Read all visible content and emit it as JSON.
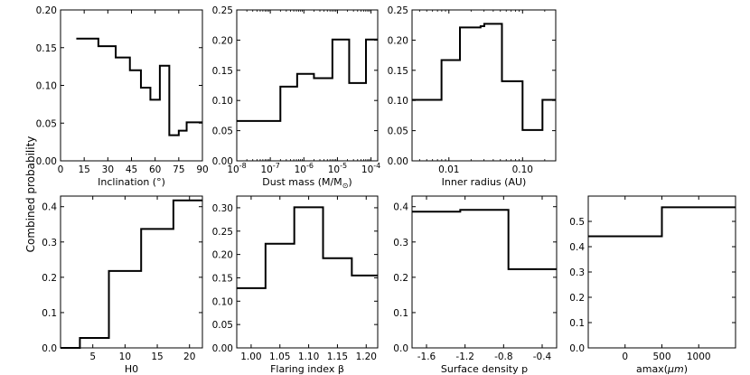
{
  "figure": {
    "ylabel": "Combined probability"
  },
  "chart_data": [
    {
      "type": "histogram",
      "xlabel": "Inclination (°)",
      "xscale": "linear",
      "xlim": [
        0,
        90
      ],
      "ylim": [
        0,
        0.2
      ],
      "xticks": [
        {
          "v": 0,
          "l": "0"
        },
        {
          "v": 15,
          "l": "15"
        },
        {
          "v": 30,
          "l": "30"
        },
        {
          "v": 45,
          "l": "45"
        },
        {
          "v": 60,
          "l": "60"
        },
        {
          "v": 75,
          "l": "75"
        },
        {
          "v": 90,
          "l": "90"
        }
      ],
      "yticks": [
        {
          "v": 0,
          "l": "0.00"
        },
        {
          "v": 0.05,
          "l": "0.05"
        },
        {
          "v": 0.1,
          "l": "0.10"
        },
        {
          "v": 0.15,
          "l": "0.15"
        },
        {
          "v": 0.2,
          "l": "0.20"
        }
      ],
      "bins": [
        {
          "x0": 10,
          "x1": 24,
          "y": 0.162
        },
        {
          "x0": 24,
          "x1": 35,
          "y": 0.152
        },
        {
          "x0": 35,
          "x1": 44,
          "y": 0.137
        },
        {
          "x0": 44,
          "x1": 51,
          "y": 0.12
        },
        {
          "x0": 51,
          "x1": 57,
          "y": 0.097
        },
        {
          "x0": 57,
          "x1": 63,
          "y": 0.081
        },
        {
          "x0": 63,
          "x1": 69,
          "y": 0.126
        },
        {
          "x0": 69,
          "x1": 75,
          "y": 0.034
        },
        {
          "x0": 75,
          "x1": 80,
          "y": 0.04
        },
        {
          "x0": 80,
          "x1": 90,
          "y": 0.051
        }
      ]
    },
    {
      "type": "histogram",
      "xlabel": "Dust mass (M/M",
      "xlabel_sub": "⊙",
      "xlabel_end": ")",
      "xscale": "log",
      "xlim": [
        -8,
        -3.8
      ],
      "ylim": [
        0,
        0.25
      ],
      "xticks": [
        {
          "v": -8,
          "b": "10",
          "e": "-8"
        },
        {
          "v": -7,
          "b": "10",
          "e": "-7"
        },
        {
          "v": -6,
          "b": "10",
          "e": "-6"
        },
        {
          "v": -5,
          "b": "10",
          "e": "-5"
        },
        {
          "v": -4,
          "b": "10",
          "e": "-4"
        }
      ],
      "yticks": [
        {
          "v": 0,
          "l": "0.00"
        },
        {
          "v": 0.05,
          "l": "0.05"
        },
        {
          "v": 0.1,
          "l": "0.10"
        },
        {
          "v": 0.15,
          "l": "0.15"
        },
        {
          "v": 0.2,
          "l": "0.20"
        },
        {
          "v": 0.25,
          "l": "0.25"
        }
      ],
      "bins": [
        {
          "x0": -8,
          "x1": -6.7,
          "y": 0.066
        },
        {
          "x0": -6.7,
          "x1": -6.2,
          "y": 0.123
        },
        {
          "x0": -6.2,
          "x1": -5.7,
          "y": 0.144
        },
        {
          "x0": -5.7,
          "x1": -5.15,
          "y": 0.137
        },
        {
          "x0": -5.15,
          "x1": -4.65,
          "y": 0.201
        },
        {
          "x0": -4.65,
          "x1": -4.15,
          "y": 0.129
        },
        {
          "x0": -4.15,
          "x1": -3.8,
          "y": 0.201
        }
      ]
    },
    {
      "type": "histogram",
      "xlabel": "Inner radius (AU)",
      "xscale": "log",
      "xlim": [
        -2.5,
        -0.55
      ],
      "ylim": [
        0,
        0.25
      ],
      "xticks": [
        {
          "v": -2,
          "l": "0.01"
        },
        {
          "v": -1,
          "l": "0.10"
        }
      ],
      "yticks": [
        {
          "v": 0,
          "l": "0.00"
        },
        {
          "v": 0.05,
          "l": "0.05"
        },
        {
          "v": 0.1,
          "l": "0.10"
        },
        {
          "v": 0.15,
          "l": "0.15"
        },
        {
          "v": 0.2,
          "l": "0.20"
        },
        {
          "v": 0.25,
          "l": "0.25"
        }
      ],
      "bins": [
        {
          "x0": -2.5,
          "x1": -2.1,
          "y": 0.101
        },
        {
          "x0": -2.1,
          "x1": -1.85,
          "y": 0.167
        },
        {
          "x0": -1.85,
          "x1": -1.57,
          "y": 0.221
        },
        {
          "x0": -1.57,
          "x1": -1.52,
          "y": 0.223
        },
        {
          "x0": -1.52,
          "x1": -1.28,
          "y": 0.227
        },
        {
          "x0": -1.28,
          "x1": -1.0,
          "y": 0.132
        },
        {
          "x0": -1.0,
          "x1": -0.73,
          "y": 0.051
        },
        {
          "x0": -0.73,
          "x1": -0.55,
          "y": 0.101
        }
      ]
    },
    {
      "type": "histogram",
      "xlabel": "H0",
      "xscale": "linear",
      "xlim": [
        0,
        22
      ],
      "ylim": [
        0,
        0.43
      ],
      "xticks": [
        {
          "v": 5,
          "l": "5"
        },
        {
          "v": 10,
          "l": "10"
        },
        {
          "v": 15,
          "l": "15"
        },
        {
          "v": 20,
          "l": "20"
        }
      ],
      "yticks": [
        {
          "v": 0,
          "l": "0.0"
        },
        {
          "v": 0.1,
          "l": "0.1"
        },
        {
          "v": 0.2,
          "l": "0.2"
        },
        {
          "v": 0.3,
          "l": "0.3"
        },
        {
          "v": 0.4,
          "l": "0.4"
        }
      ],
      "bins": [
        {
          "x0": 0,
          "x1": 3,
          "y": 0.0
        },
        {
          "x0": 3,
          "x1": 7.5,
          "y": 0.028
        },
        {
          "x0": 7.5,
          "x1": 12.5,
          "y": 0.218
        },
        {
          "x0": 12.5,
          "x1": 17.5,
          "y": 0.337
        },
        {
          "x0": 17.5,
          "x1": 22,
          "y": 0.418
        }
      ]
    },
    {
      "type": "histogram",
      "xlabel": "Flaring index β",
      "xscale": "linear",
      "xlim": [
        0.975,
        1.22
      ],
      "ylim": [
        0,
        0.325
      ],
      "xticks": [
        {
          "v": 1.0,
          "l": "1.00"
        },
        {
          "v": 1.05,
          "l": "1.05"
        },
        {
          "v": 1.1,
          "l": "1.10"
        },
        {
          "v": 1.15,
          "l": "1.15"
        },
        {
          "v": 1.2,
          "l": "1.20"
        }
      ],
      "yticks": [
        {
          "v": 0,
          "l": "0.00"
        },
        {
          "v": 0.05,
          "l": "0.05"
        },
        {
          "v": 0.1,
          "l": "0.10"
        },
        {
          "v": 0.15,
          "l": "0.15"
        },
        {
          "v": 0.2,
          "l": "0.20"
        },
        {
          "v": 0.25,
          "l": "0.25"
        },
        {
          "v": 0.3,
          "l": "0.30"
        }
      ],
      "bins": [
        {
          "x0": 0.975,
          "x1": 1.025,
          "y": 0.128
        },
        {
          "x0": 1.025,
          "x1": 1.075,
          "y": 0.223
        },
        {
          "x0": 1.075,
          "x1": 1.125,
          "y": 0.301
        },
        {
          "x0": 1.125,
          "x1": 1.175,
          "y": 0.192
        },
        {
          "x0": 1.175,
          "x1": 1.22,
          "y": 0.155
        }
      ]
    },
    {
      "type": "histogram",
      "xlabel": "Surface density p",
      "xscale": "linear",
      "xlim": [
        -1.75,
        -0.25
      ],
      "ylim": [
        0,
        0.43
      ],
      "xticks": [
        {
          "v": -1.6,
          "l": "-1.6"
        },
        {
          "v": -1.2,
          "l": "-1.2"
        },
        {
          "v": -0.8,
          "l": "-0.8"
        },
        {
          "v": -0.4,
          "l": "-0.4"
        }
      ],
      "yticks": [
        {
          "v": 0,
          "l": "0.0"
        },
        {
          "v": 0.1,
          "l": "0.1"
        },
        {
          "v": 0.2,
          "l": "0.2"
        },
        {
          "v": 0.3,
          "l": "0.3"
        },
        {
          "v": 0.4,
          "l": "0.4"
        }
      ],
      "bins": [
        {
          "x0": -1.75,
          "x1": -1.25,
          "y": 0.386
        },
        {
          "x0": -1.25,
          "x1": -0.75,
          "y": 0.391
        },
        {
          "x0": -0.75,
          "x1": -0.25,
          "y": 0.223
        }
      ]
    },
    {
      "type": "histogram",
      "xlabel": "amax(",
      "xlabel_unit": "μm",
      "xlabel_end": ")",
      "xscale": "linear",
      "xlim": [
        -500,
        1500
      ],
      "ylim": [
        0,
        0.6
      ],
      "xticks": [
        {
          "v": 0,
          "l": "0"
        },
        {
          "v": 500,
          "l": "500"
        },
        {
          "v": 1000,
          "l": "1000"
        }
      ],
      "yticks": [
        {
          "v": 0,
          "l": "0.0"
        },
        {
          "v": 0.1,
          "l": "0.1"
        },
        {
          "v": 0.2,
          "l": "0.2"
        },
        {
          "v": 0.3,
          "l": "0.3"
        },
        {
          "v": 0.4,
          "l": "0.4"
        },
        {
          "v": 0.5,
          "l": "0.5"
        }
      ],
      "bins": [
        {
          "x0": -500,
          "x1": 500,
          "y": 0.441
        },
        {
          "x0": 500,
          "x1": 1500,
          "y": 0.556
        }
      ]
    }
  ]
}
